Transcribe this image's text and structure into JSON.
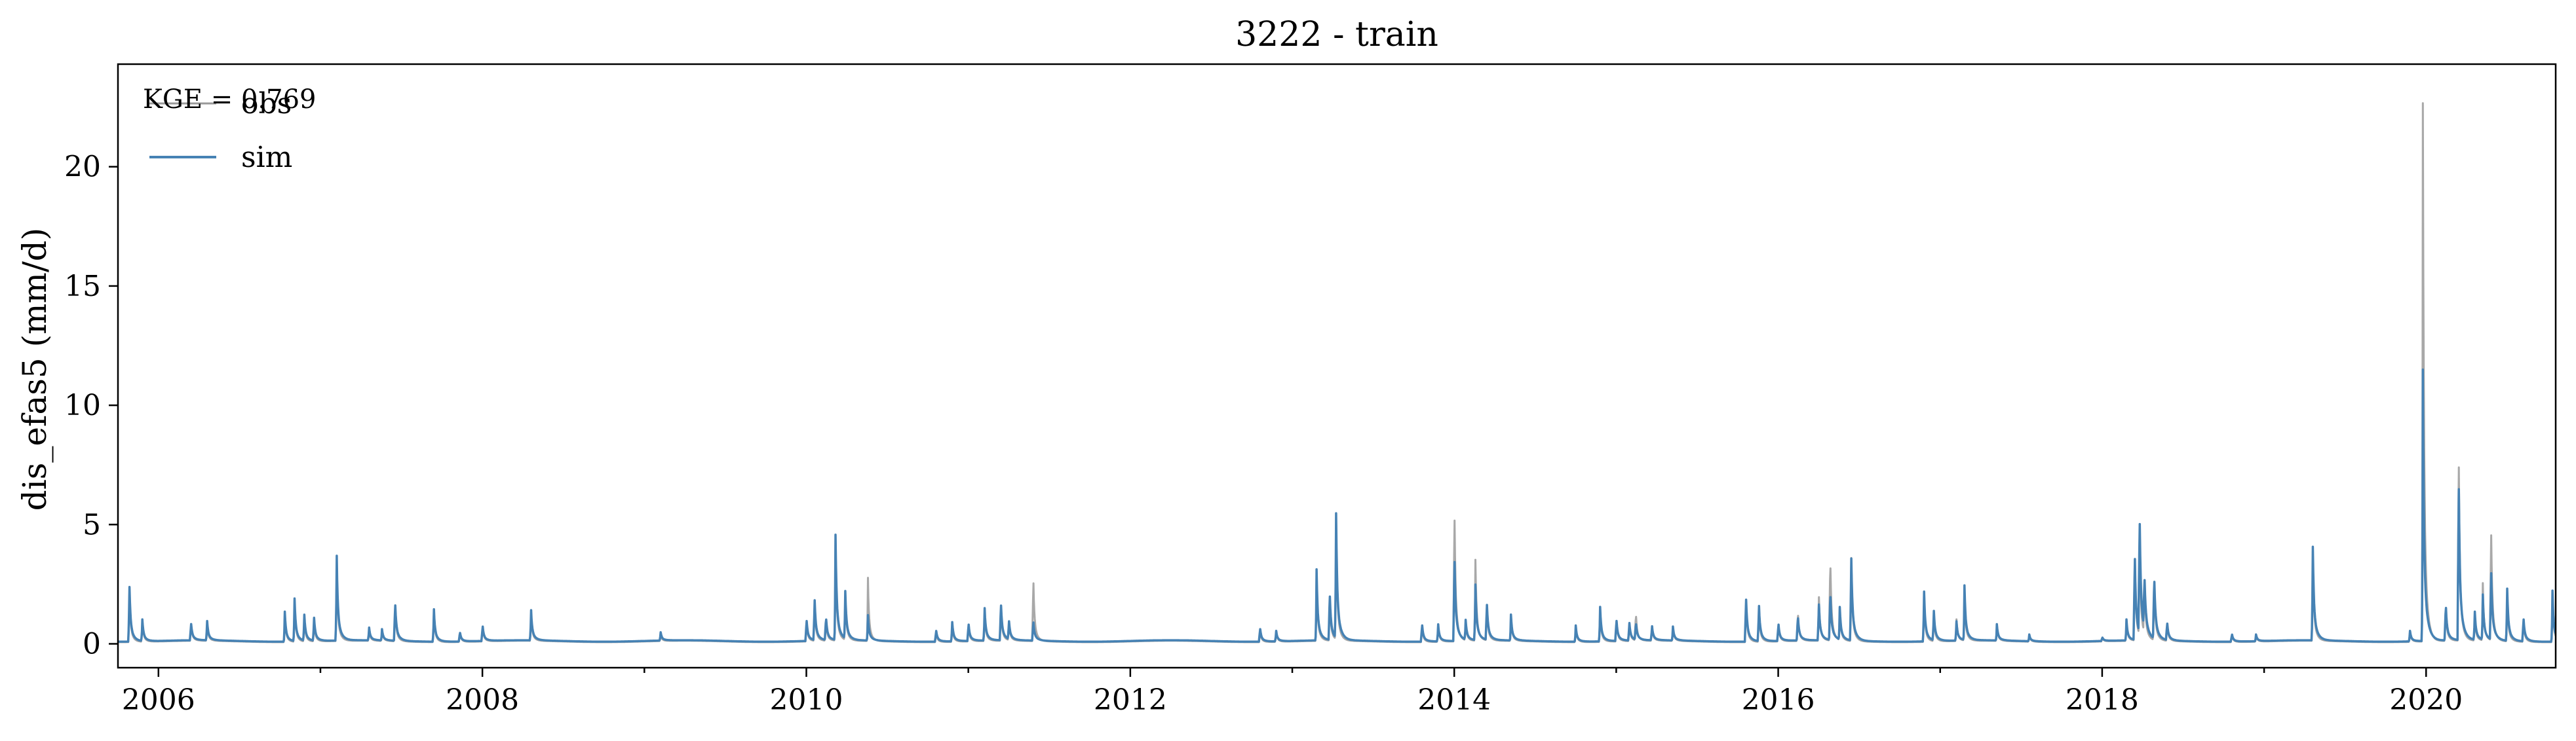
{
  "chart_data": {
    "type": "line",
    "title": "3222 - train",
    "xlabel": "",
    "ylabel": "dis_efas5 (mm/d)",
    "annotation": "KGE = 0.769",
    "xlim": [
      2005.75,
      2020.8
    ],
    "ylim": [
      -1.0,
      24.3
    ],
    "x_ticks": [
      2006,
      2008,
      2010,
      2012,
      2014,
      2016,
      2018,
      2020
    ],
    "x_tick_labels": [
      "2006",
      "2008",
      "2010",
      "2012",
      "2014",
      "2016",
      "2018",
      "2020"
    ],
    "y_ticks": [
      0,
      5,
      10,
      15,
      20
    ],
    "y_tick_labels": [
      "0",
      "5",
      "10",
      "15",
      "20"
    ],
    "grid": false,
    "legend_position": "top-left",
    "baseflow_obs": 0.1,
    "baseflow_sim": 0.12,
    "series": [
      {
        "name": "obs",
        "color": "#999999",
        "peaks": [
          [
            2005.82,
            2.7
          ],
          [
            2005.9,
            1.1
          ],
          [
            2006.2,
            1.0
          ],
          [
            2006.3,
            0.9
          ],
          [
            2006.78,
            1.4
          ],
          [
            2006.84,
            2.0
          ],
          [
            2006.9,
            1.2
          ],
          [
            2006.96,
            1.1
          ],
          [
            2007.1,
            3.8
          ],
          [
            2007.3,
            0.6
          ],
          [
            2007.38,
            0.6
          ],
          [
            2007.46,
            2.0
          ],
          [
            2007.7,
            1.6
          ],
          [
            2007.86,
            0.6
          ],
          [
            2008.0,
            0.9
          ],
          [
            2008.3,
            1.4
          ],
          [
            2009.1,
            0.4
          ],
          [
            2010.0,
            1.1
          ],
          [
            2010.05,
            2.0
          ],
          [
            2010.12,
            1.2
          ],
          [
            2010.18,
            4.6
          ],
          [
            2010.24,
            2.2
          ],
          [
            2010.38,
            2.8
          ],
          [
            2010.8,
            0.6
          ],
          [
            2010.9,
            0.9
          ],
          [
            2011.0,
            0.9
          ],
          [
            2011.1,
            1.5
          ],
          [
            2011.2,
            1.9
          ],
          [
            2011.25,
            1.0
          ],
          [
            2011.4,
            3.3
          ],
          [
            2012.8,
            0.7
          ],
          [
            2012.9,
            0.6
          ],
          [
            2013.15,
            3.0
          ],
          [
            2013.23,
            2.4
          ],
          [
            2013.27,
            5.6
          ],
          [
            2013.8,
            0.9
          ],
          [
            2013.9,
            0.9
          ],
          [
            2014.0,
            6.8
          ],
          [
            2014.07,
            1.0
          ],
          [
            2014.13,
            3.9
          ],
          [
            2014.2,
            2.0
          ],
          [
            2014.35,
            1.2
          ],
          [
            2014.75,
            0.8
          ],
          [
            2014.9,
            1.6
          ],
          [
            2015.0,
            1.2
          ],
          [
            2015.08,
            1.0
          ],
          [
            2015.12,
            1.5
          ],
          [
            2015.22,
            0.8
          ],
          [
            2015.35,
            0.7
          ],
          [
            2015.8,
            2.3
          ],
          [
            2015.88,
            1.8
          ],
          [
            2016.0,
            1.0
          ],
          [
            2016.12,
            1.6
          ],
          [
            2016.25,
            2.3
          ],
          [
            2016.32,
            4.4
          ],
          [
            2016.38,
            1.5
          ],
          [
            2016.45,
            4.3
          ],
          [
            2016.9,
            2.2
          ],
          [
            2016.96,
            1.4
          ],
          [
            2017.1,
            1.1
          ],
          [
            2017.15,
            2.2
          ],
          [
            2017.35,
            0.8
          ],
          [
            2017.55,
            0.4
          ],
          [
            2018.0,
            0.3
          ],
          [
            2018.15,
            1.0
          ],
          [
            2018.2,
            4.6
          ],
          [
            2018.23,
            5.2
          ],
          [
            2018.26,
            2.8
          ],
          [
            2018.32,
            3.3
          ],
          [
            2018.4,
            1.0
          ],
          [
            2018.8,
            0.5
          ],
          [
            2018.95,
            0.4
          ],
          [
            2019.3,
            4.2
          ],
          [
            2019.9,
            0.6
          ],
          [
            2019.98,
            23.1
          ],
          [
            2020.12,
            1.9
          ],
          [
            2020.2,
            9.7
          ],
          [
            2020.3,
            1.3
          ],
          [
            2020.35,
            2.5
          ],
          [
            2020.4,
            5.9
          ],
          [
            2020.5,
            2.3
          ],
          [
            2020.6,
            1.2
          ],
          [
            2020.78,
            2.2
          ]
        ]
      },
      {
        "name": "sim",
        "color": "#4682b4",
        "peaks": [
          [
            2005.82,
            2.8
          ],
          [
            2005.9,
            1.1
          ],
          [
            2006.2,
            1.0
          ],
          [
            2006.3,
            1.0
          ],
          [
            2006.78,
            1.4
          ],
          [
            2006.84,
            2.0
          ],
          [
            2006.9,
            1.3
          ],
          [
            2006.96,
            1.2
          ],
          [
            2007.1,
            4.0
          ],
          [
            2007.3,
            0.7
          ],
          [
            2007.38,
            0.6
          ],
          [
            2007.46,
            2.1
          ],
          [
            2007.7,
            1.6
          ],
          [
            2007.86,
            0.6
          ],
          [
            2008.0,
            0.9
          ],
          [
            2008.3,
            1.5
          ],
          [
            2009.1,
            0.5
          ],
          [
            2010.0,
            1.2
          ],
          [
            2010.05,
            2.1
          ],
          [
            2010.12,
            1.3
          ],
          [
            2010.18,
            4.6
          ],
          [
            2010.24,
            2.2
          ],
          [
            2010.38,
            1.2
          ],
          [
            2010.8,
            0.7
          ],
          [
            2010.9,
            1.0
          ],
          [
            2011.0,
            1.0
          ],
          [
            2011.1,
            1.6
          ],
          [
            2011.2,
            2.0
          ],
          [
            2011.25,
            1.0
          ],
          [
            2011.4,
            1.1
          ],
          [
            2012.8,
            0.8
          ],
          [
            2012.9,
            0.6
          ],
          [
            2013.15,
            3.1
          ],
          [
            2013.23,
            2.5
          ],
          [
            2013.27,
            5.7
          ],
          [
            2013.8,
            1.0
          ],
          [
            2013.9,
            0.9
          ],
          [
            2014.0,
            4.4
          ],
          [
            2014.07,
            1.0
          ],
          [
            2014.13,
            2.7
          ],
          [
            2014.2,
            2.0
          ],
          [
            2014.35,
            1.2
          ],
          [
            2014.75,
            0.8
          ],
          [
            2014.9,
            1.7
          ],
          [
            2015.0,
            1.2
          ],
          [
            2015.08,
            1.0
          ],
          [
            2015.12,
            1.0
          ],
          [
            2015.22,
            0.8
          ],
          [
            2015.35,
            0.7
          ],
          [
            2015.8,
            2.4
          ],
          [
            2015.88,
            1.9
          ],
          [
            2016.0,
            1.0
          ],
          [
            2016.12,
            1.4
          ],
          [
            2016.25,
            1.9
          ],
          [
            2016.32,
            2.6
          ],
          [
            2016.38,
            1.5
          ],
          [
            2016.45,
            4.2
          ],
          [
            2016.9,
            2.4
          ],
          [
            2016.96,
            1.5
          ],
          [
            2017.1,
            1.0
          ],
          [
            2017.15,
            2.4
          ],
          [
            2017.35,
            0.8
          ],
          [
            2017.55,
            0.4
          ],
          [
            2018.0,
            0.3
          ],
          [
            2018.15,
            1.0
          ],
          [
            2018.2,
            4.5
          ],
          [
            2018.23,
            6.1
          ],
          [
            2018.26,
            2.8
          ],
          [
            2018.32,
            3.4
          ],
          [
            2018.4,
            1.0
          ],
          [
            2018.8,
            0.5
          ],
          [
            2018.95,
            0.4
          ],
          [
            2019.3,
            4.4
          ],
          [
            2019.9,
            0.6
          ],
          [
            2019.98,
            11.7
          ],
          [
            2020.12,
            2.0
          ],
          [
            2020.2,
            8.3
          ],
          [
            2020.3,
            1.4
          ],
          [
            2020.35,
            2.0
          ],
          [
            2020.4,
            3.7
          ],
          [
            2020.5,
            2.5
          ],
          [
            2020.6,
            1.3
          ],
          [
            2020.78,
            2.3
          ]
        ]
      }
    ]
  }
}
